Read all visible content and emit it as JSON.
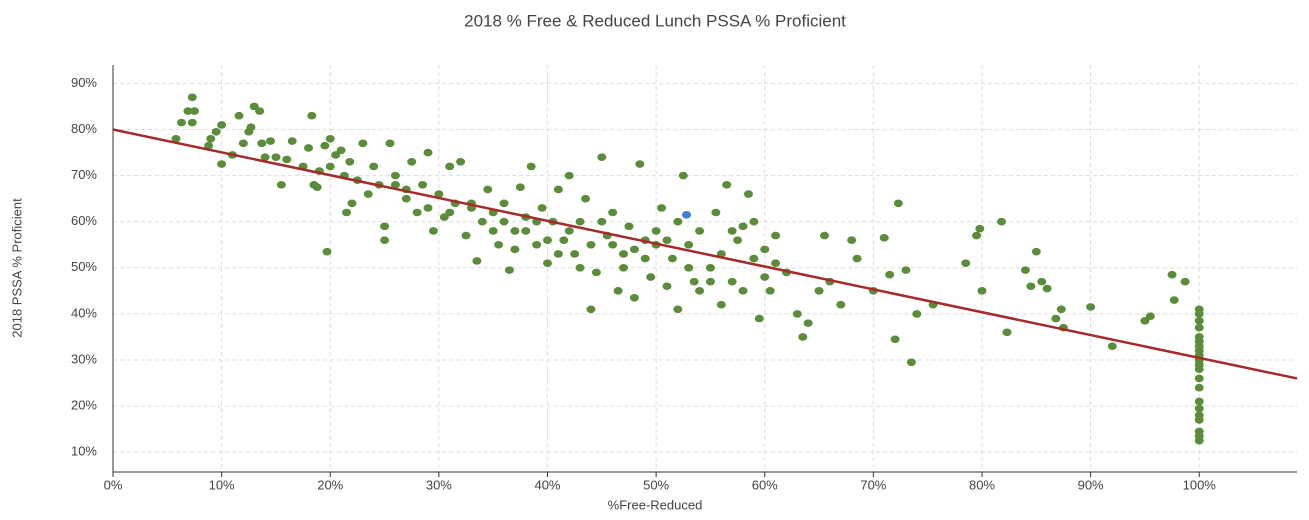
{
  "chart_data": {
    "type": "scatter",
    "title": "2018 % Free & Reduced Lunch PSSA % Proficient",
    "xlabel": "%Free-Reduced",
    "ylabel": "2018 PSSA % Proficient",
    "xlim": [
      0,
      109
    ],
    "ylim": [
      5.7,
      94
    ],
    "xticks": [
      {
        "value": 0,
        "label": "0%"
      },
      {
        "value": 10,
        "label": "10%"
      },
      {
        "value": 20,
        "label": "20%"
      },
      {
        "value": 30,
        "label": "30%"
      },
      {
        "value": 40,
        "label": "40%"
      },
      {
        "value": 50,
        "label": "50%"
      },
      {
        "value": 60,
        "label": "60%"
      },
      {
        "value": 70,
        "label": "70%"
      },
      {
        "value": 80,
        "label": "80%"
      },
      {
        "value": 90,
        "label": "90%"
      },
      {
        "value": 100,
        "label": "100%"
      }
    ],
    "yticks": [
      {
        "value": 10,
        "label": "10%"
      },
      {
        "value": 20,
        "label": "20%"
      },
      {
        "value": 30,
        "label": "30%"
      },
      {
        "value": 40,
        "label": "40%"
      },
      {
        "value": 50,
        "label": "50%"
      },
      {
        "value": 60,
        "label": "60%"
      },
      {
        "value": 70,
        "label": "70%"
      },
      {
        "value": 80,
        "label": "80%"
      },
      {
        "value": 90,
        "label": "90%"
      }
    ],
    "grid": true,
    "series": [
      {
        "color": "#5b8c3a",
        "x": [
          5.8,
          6.3,
          6.9,
          7.3,
          7.5,
          7.3,
          8.8,
          9,
          9.5,
          10,
          10,
          11,
          11.6,
          12,
          12.5,
          12.7,
          13,
          13.5,
          13.7,
          14,
          14.5,
          15,
          15.5,
          16,
          16.5,
          17.5,
          18,
          18.3,
          18.5,
          18.8,
          19,
          19.5,
          19.7,
          20,
          20,
          20.5,
          21,
          21.3,
          21.5,
          21.8,
          22,
          22.5,
          23,
          23.5,
          24,
          24.5,
          25,
          25,
          25.5,
          26,
          27,
          27.5,
          28,
          28.5,
          29,
          29.5,
          30,
          30.5,
          31,
          31.5,
          32,
          32.5,
          33,
          33.5,
          34,
          34.5,
          35,
          35.5,
          36,
          36.5,
          37,
          37.5,
          38,
          38.5,
          39,
          39.5,
          40,
          40.5,
          41,
          41.5,
          42,
          42.5,
          43,
          43.5,
          44,
          44.5,
          45,
          45.5,
          46,
          46.5,
          47,
          47.5,
          48,
          48.5,
          49,
          49.5,
          50,
          50.5,
          51,
          51.5,
          52,
          52.5,
          53,
          53.5,
          54,
          55,
          55.5,
          56,
          56.5,
          57,
          57.5,
          58,
          58.5,
          59,
          59.5,
          60,
          60.5,
          61,
          62,
          63,
          63.5,
          64,
          65,
          65.5,
          66,
          67,
          68,
          68.5,
          70,
          71,
          71.5,
          72,
          72.3,
          73,
          73.5,
          74,
          75.5,
          78.5,
          79.5,
          79.8,
          80,
          81.8,
          82.3,
          84,
          84.5,
          85,
          85.5,
          86,
          86.8,
          87.3,
          87.5,
          90,
          92,
          95,
          95.5,
          97.5,
          97.7,
          98.7,
          100,
          100,
          100,
          100,
          100,
          100,
          100,
          100,
          100,
          100,
          100,
          100,
          100,
          100,
          100,
          100,
          100,
          100,
          100,
          100,
          100,
          38,
          40,
          42,
          44,
          46,
          48,
          50,
          52,
          45,
          43,
          41,
          39,
          37,
          35,
          33,
          31,
          29,
          27,
          26,
          36,
          47,
          49,
          51,
          53,
          55,
          57,
          59,
          61,
          54,
          56,
          58,
          60
        ],
        "y": [
          78,
          81.5,
          84,
          87,
          84,
          81.5,
          76.5,
          78,
          79.5,
          81,
          72.5,
          74.5,
          83,
          77,
          79.5,
          80.5,
          85,
          84,
          77,
          74,
          77.5,
          74,
          68,
          73.5,
          77.5,
          72,
          76,
          83,
          68,
          67.5,
          71,
          76.5,
          53.5,
          78,
          72,
          74.5,
          75.5,
          70,
          62,
          73,
          64,
          69,
          77,
          66,
          72,
          68,
          59,
          56,
          77,
          70,
          65,
          73,
          62,
          68,
          75,
          58,
          66,
          61,
          72,
          64,
          73,
          57,
          63,
          51.5,
          60,
          67,
          62,
          55,
          64,
          49.5,
          58,
          67.5,
          61,
          72,
          55,
          63,
          51,
          60,
          67,
          56,
          70,
          53,
          60,
          65,
          41,
          49,
          74,
          57,
          62,
          45,
          53,
          59,
          43.5,
          72.5,
          56,
          48,
          58,
          63,
          46,
          52,
          41,
          70,
          55,
          47,
          58,
          50,
          62,
          53,
          68,
          47,
          56,
          45,
          66,
          52,
          39,
          54,
          45,
          51,
          49,
          40,
          35,
          38,
          45,
          57,
          47,
          42,
          56,
          52,
          45,
          56.5,
          48.5,
          34.5,
          64,
          49.5,
          29.5,
          40,
          42,
          51,
          57,
          58.5,
          45,
          60,
          36,
          49.5,
          46,
          53.5,
          47,
          45.5,
          39,
          41,
          37,
          41.5,
          33,
          38.5,
          39.5,
          48.5,
          43,
          47,
          41,
          40,
          38.5,
          37,
          35,
          34,
          33,
          32,
          31,
          30,
          29,
          28,
          26,
          24,
          21,
          19.5,
          18,
          17,
          14.5,
          13.5,
          12.5,
          58,
          56,
          58,
          55,
          55,
          54,
          55,
          60,
          60,
          50,
          53,
          60,
          54,
          58,
          64,
          62,
          63,
          67,
          68,
          60,
          50,
          52,
          56,
          50,
          47,
          58,
          60,
          57,
          45,
          42,
          59,
          48
        ]
      },
      {
        "color": "#3b7dd8",
        "x": [
          52.8
        ],
        "y": [
          61.5
        ]
      }
    ],
    "trendline": {
      "color": "#a52a2a",
      "x": [
        0,
        109
      ],
      "y": [
        80,
        26
      ]
    }
  }
}
